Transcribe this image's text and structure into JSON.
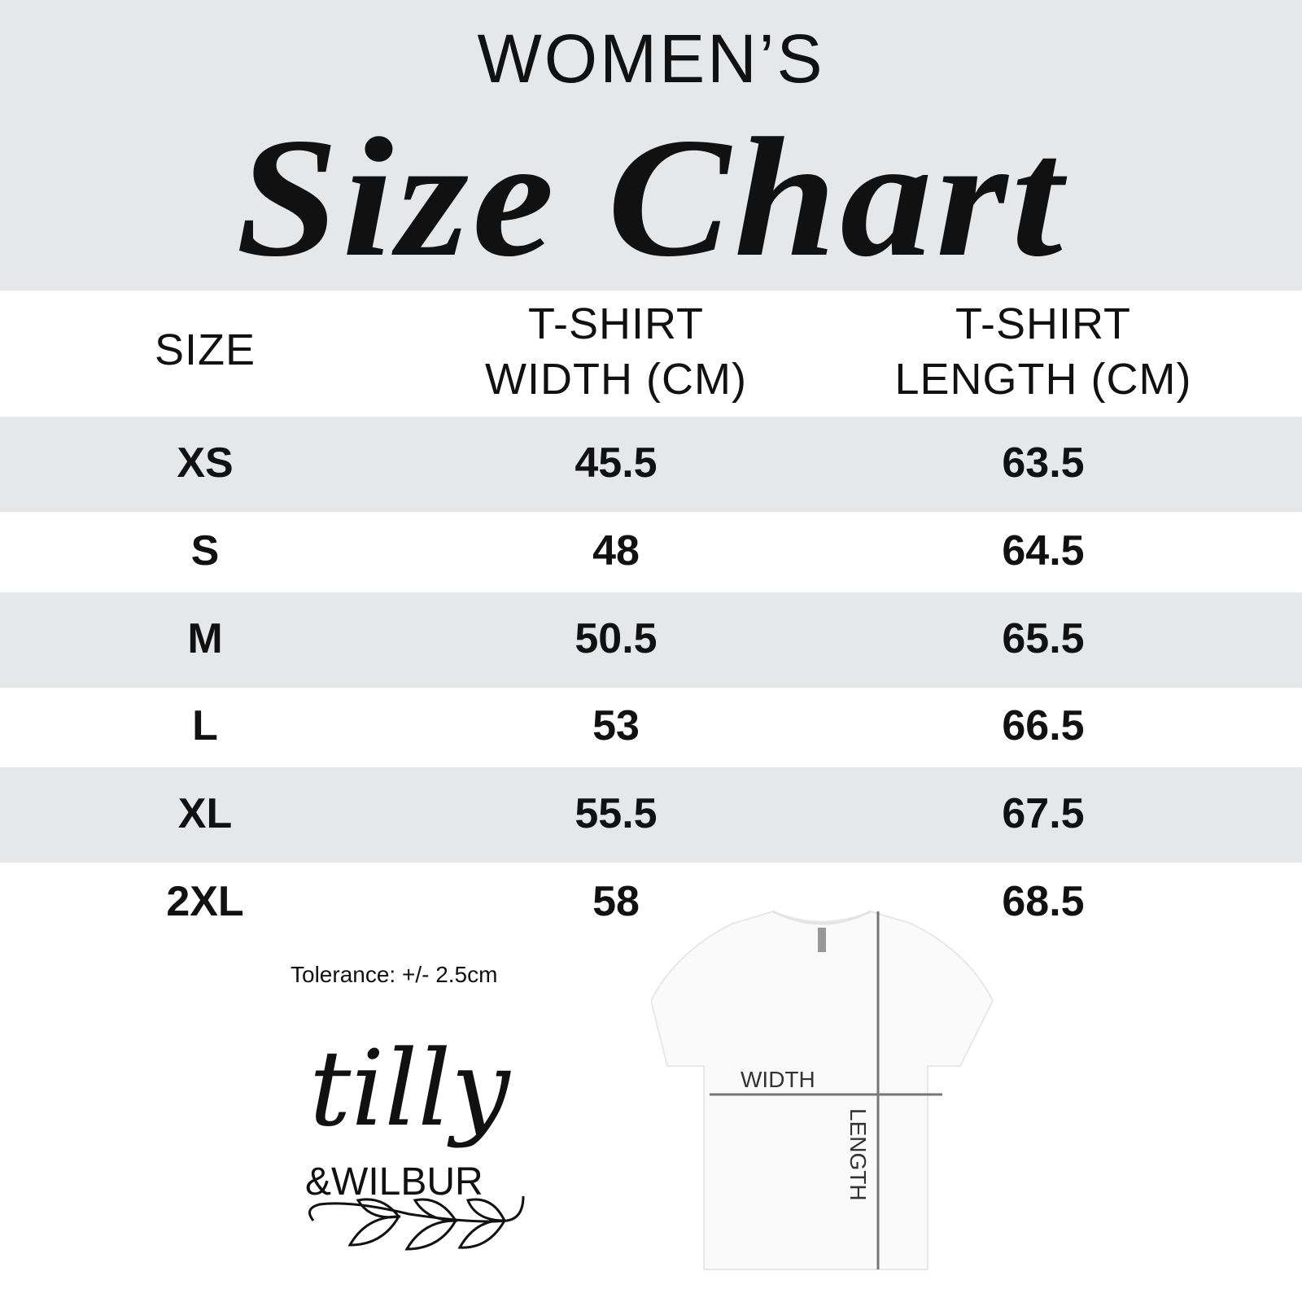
{
  "header": {
    "subtitle": "WOMEN’S",
    "title": "Size Chart"
  },
  "table": {
    "columns": [
      "SIZE",
      "T-SHIRT\nWIDTH (CM)",
      "T-SHIRT\nLENGTH (CM)"
    ],
    "col_lines": [
      [
        "SIZE"
      ],
      [
        "T-SHIRT",
        "WIDTH (CM)"
      ],
      [
        "T-SHIRT",
        "LENGTH (CM)"
      ]
    ],
    "rows": [
      [
        "XS",
        "45.5",
        "63.5"
      ],
      [
        "S",
        "48",
        "64.5"
      ],
      [
        "M",
        "50.5",
        "65.5"
      ],
      [
        "L",
        "53",
        "66.5"
      ],
      [
        "XL",
        "55.5",
        "67.5"
      ],
      [
        "2XL",
        "58",
        "68.5"
      ]
    ]
  },
  "tolerance": "Tolerance: +/- 2.5cm",
  "diagram": {
    "width_label": "WIDTH",
    "length_label": "LENGTH"
  },
  "logo": {
    "line1": "tilly",
    "line2": "&WILBUR"
  },
  "colors": {
    "band": "#e6e7e9",
    "text": "#111111",
    "measure_line": "#777777"
  }
}
